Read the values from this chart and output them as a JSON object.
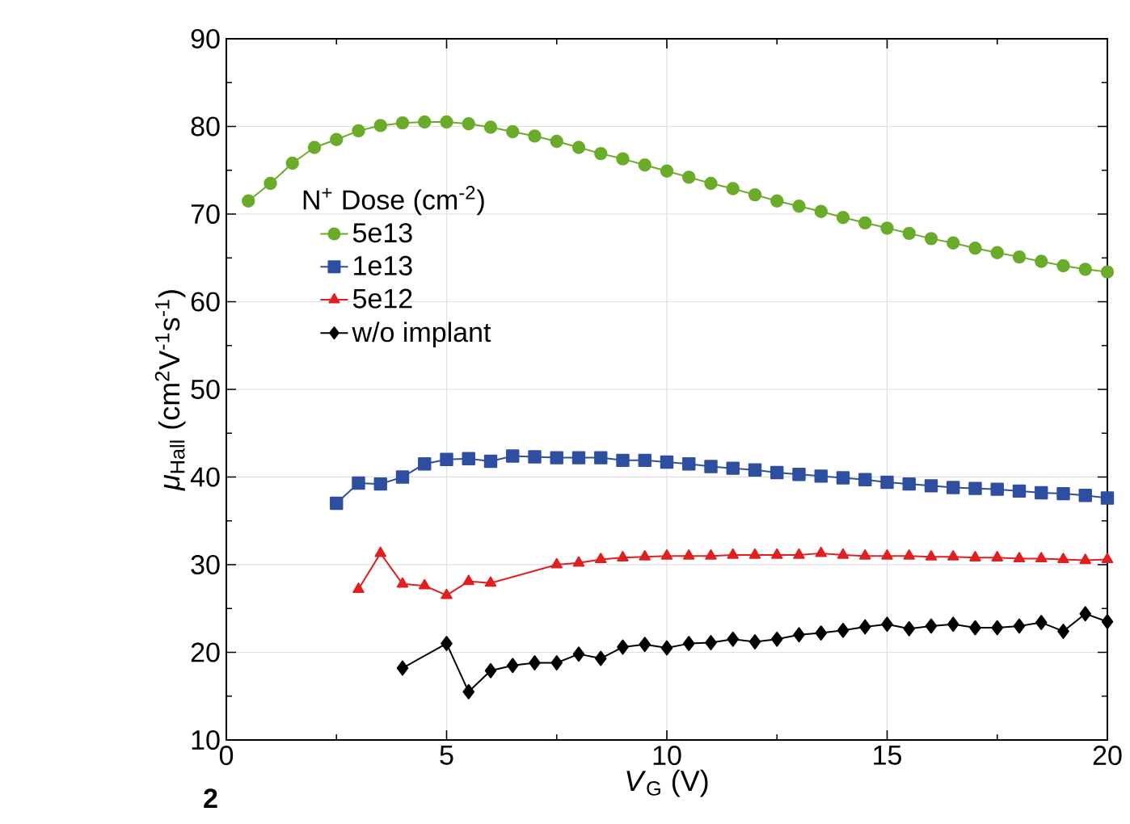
{
  "chart_data": {
    "type": "line",
    "xlabel": "*V*$_{G}$ (V)",
    "ylabel": "*μ*$_{Hall}$ (cm$^{2}$V$^{-1}$s$^{-1}$)",
    "legend_title": "N$^{+}$ Dose (cm$^{-2}$)",
    "annotations": [
      "2"
    ],
    "xlim": [
      0,
      20
    ],
    "xticks": [
      0,
      5,
      10,
      15,
      20
    ],
    "ylim": [
      10,
      90
    ],
    "yticks": [
      10,
      20,
      30,
      40,
      50,
      60,
      70,
      80,
      90
    ],
    "grid": true,
    "legend": "top left",
    "series": [
      {
        "name": "5e13",
        "color": "#6aac2a",
        "marker": "circle",
        "x": [
          0.5,
          1,
          1.5,
          2,
          2.5,
          3,
          3.5,
          4,
          4.5,
          5,
          5.5,
          6,
          6.5,
          7,
          7.5,
          8,
          8.5,
          9,
          9.5,
          10,
          10.5,
          11,
          11.5,
          12,
          12.5,
          13,
          13.5,
          14,
          14.5,
          15,
          15.5,
          16,
          16.5,
          17,
          17.5,
          18,
          18.5,
          19,
          19.5,
          20
        ],
        "values": [
          71.5,
          73.5,
          75.8,
          77.6,
          78.5,
          79.5,
          80.1,
          80.4,
          80.5,
          80.5,
          80.3,
          79.9,
          79.4,
          78.9,
          78.3,
          77.6,
          76.9,
          76.3,
          75.6,
          74.9,
          74.2,
          73.5,
          72.9,
          72.2,
          71.5,
          70.9,
          70.3,
          69.6,
          69.0,
          68.4,
          67.8,
          67.2,
          66.7,
          66.1,
          65.6,
          65.1,
          64.6,
          64.1,
          63.7,
          63.4
        ]
      },
      {
        "name": "1e13",
        "color": "#2e4fa0",
        "marker": "square",
        "x": [
          2.5,
          3,
          3.5,
          4,
          4.5,
          5,
          5.5,
          6,
          6.5,
          7,
          7.5,
          8,
          8.5,
          9,
          9.5,
          10,
          10.5,
          11,
          11.5,
          12,
          12.5,
          13,
          13.5,
          14,
          14.5,
          15,
          15.5,
          16,
          16.5,
          17,
          17.5,
          18,
          18.5,
          19,
          19.5,
          20
        ],
        "values": [
          37,
          39.3,
          39.2,
          40,
          41.5,
          42,
          42.1,
          41.8,
          42.4,
          42.3,
          42.2,
          42.2,
          42.2,
          41.9,
          41.9,
          41.7,
          41.5,
          41.2,
          41.0,
          40.8,
          40.5,
          40.3,
          40.1,
          39.9,
          39.7,
          39.4,
          39.2,
          39.0,
          38.8,
          38.7,
          38.6,
          38.4,
          38.2,
          38.1,
          37.9,
          37.6
        ]
      },
      {
        "name": "5e12",
        "color": "#e02020",
        "marker": "triangle",
        "x": [
          3,
          3.5,
          4,
          4.5,
          5,
          5.5,
          6,
          7.5,
          8,
          8.5,
          9,
          9.5,
          10,
          10.5,
          11,
          11.5,
          12,
          12.5,
          13,
          13.5,
          14,
          14.5,
          15,
          15.5,
          16,
          16.5,
          17,
          17.5,
          18,
          18.5,
          19,
          19.5,
          20
        ],
        "values": [
          27.2,
          31.3,
          27.8,
          27.6,
          26.5,
          28.1,
          27.9,
          30,
          30.2,
          30.6,
          30.8,
          30.9,
          31,
          31,
          31,
          31.1,
          31.1,
          31.1,
          31.1,
          31.3,
          31.1,
          31,
          31,
          31,
          30.9,
          30.9,
          30.8,
          30.8,
          30.7,
          30.7,
          30.6,
          30.5,
          30.6
        ]
      },
      {
        "name": "w/o implant",
        "color": "#000000",
        "marker": "diamond",
        "x": [
          4,
          5,
          5.5,
          6,
          6.5,
          7,
          7.5,
          8,
          8.5,
          9,
          9.5,
          10,
          10.5,
          11,
          11.5,
          12,
          12.5,
          13,
          13.5,
          14,
          14.5,
          15,
          15.5,
          16,
          16.5,
          17,
          17.5,
          18,
          18.5,
          19,
          19.5,
          20
        ],
        "values": [
          18.2,
          21,
          15.5,
          17.9,
          18.5,
          18.8,
          18.8,
          19.8,
          19.3,
          20.6,
          20.9,
          20.5,
          21,
          21.1,
          21.5,
          21.2,
          21.5,
          22,
          22.2,
          22.5,
          22.9,
          23.2,
          22.7,
          23,
          23.2,
          22.8,
          22.8,
          23,
          23.4,
          22.4,
          24.4,
          23.5
        ]
      }
    ]
  }
}
